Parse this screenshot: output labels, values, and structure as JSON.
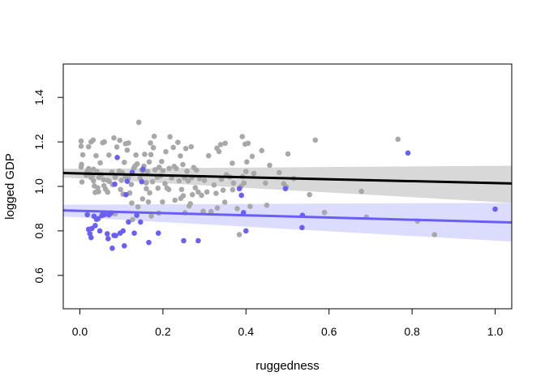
{
  "chart_data": {
    "type": "scatter",
    "title": "",
    "xlabel": "ruggedness",
    "ylabel": "logged GDP",
    "xlim": [
      -0.04,
      1.04
    ],
    "ylim": [
      0.45,
      1.55
    ],
    "xticks": [
      0.0,
      0.2,
      0.4,
      0.6,
      0.8,
      1.0
    ],
    "xtick_labels": [
      "0.0",
      "0.2",
      "0.4",
      "0.6",
      "0.8",
      "1.0"
    ],
    "yticks": [
      0.6,
      0.8,
      1.0,
      1.2,
      1.4
    ],
    "ytick_labels": [
      "0.6",
      "0.8",
      "1.0",
      "1.2",
      "1.4"
    ],
    "grid": false,
    "legend": "none",
    "series": [
      {
        "color": "#A8A8A8",
        "points": [
          [
            0.003,
            1.181
          ],
          [
            0.003,
            1.204
          ],
          [
            0.003,
            1.087
          ],
          [
            0.004,
            1.099
          ],
          [
            0.005,
            1.02
          ],
          [
            0.007,
            1.142
          ],
          [
            0.015,
            1.051
          ],
          [
            0.017,
            1.065
          ],
          [
            0.019,
            1.072
          ],
          [
            0.021,
            1.178
          ],
          [
            0.021,
            1.08
          ],
          [
            0.025,
            1.058
          ],
          [
            0.027,
            1.2
          ],
          [
            0.027,
            1.04
          ],
          [
            0.029,
            1.049
          ],
          [
            0.031,
            1.05
          ],
          [
            0.032,
            1.208
          ],
          [
            0.033,
            1.025
          ],
          [
            0.033,
            1.077
          ],
          [
            0.035,
            1.002
          ],
          [
            0.037,
            0.973
          ],
          [
            0.039,
            1.138
          ],
          [
            0.041,
            1.067
          ],
          [
            0.043,
            0.994
          ],
          [
            0.045,
            0.976
          ],
          [
            0.046,
            1.04
          ],
          [
            0.049,
            1.106
          ],
          [
            0.052,
            1.054
          ],
          [
            0.055,
            1.196
          ],
          [
            0.057,
            1.03
          ],
          [
            0.058,
            1.003
          ],
          [
            0.059,
            1.2
          ],
          [
            0.062,
            0.987
          ],
          [
            0.067,
            1.027
          ],
          [
            0.067,
            0.974
          ],
          [
            0.07,
            1.141
          ],
          [
            0.071,
            1.022
          ],
          [
            0.077,
            1.064
          ],
          [
            0.079,
            1.008
          ],
          [
            0.082,
            1.218
          ],
          [
            0.085,
            1.041
          ],
          [
            0.085,
            0.877
          ],
          [
            0.089,
            1.177
          ],
          [
            0.095,
            1.069
          ],
          [
            0.096,
            1.207
          ],
          [
            0.098,
            0.986
          ],
          [
            0.1,
            1.027
          ],
          [
            0.102,
            1.062
          ],
          [
            0.104,
            0.965
          ],
          [
            0.107,
            1.108
          ],
          [
            0.11,
            1.192
          ],
          [
            0.11,
            1.043
          ],
          [
            0.114,
            1.163
          ],
          [
            0.117,
            1.039
          ],
          [
            0.117,
            1.195
          ],
          [
            0.12,
            0.97
          ],
          [
            0.124,
            1.009
          ],
          [
            0.125,
            0.925
          ],
          [
            0.126,
            1.056
          ],
          [
            0.127,
            0.851
          ],
          [
            0.13,
            1.082
          ],
          [
            0.133,
            1.092
          ],
          [
            0.135,
            1.141
          ],
          [
            0.138,
            1.101
          ],
          [
            0.14,
            0.908
          ],
          [
            0.142,
            1.288
          ],
          [
            0.145,
            1.037
          ],
          [
            0.149,
            1.073
          ],
          [
            0.151,
            1.069
          ],
          [
            0.151,
            0.944
          ],
          [
            0.154,
            1.091
          ],
          [
            0.156,
            1.144
          ],
          [
            0.16,
            1.016
          ],
          [
            0.16,
            0.99
          ],
          [
            0.163,
            1.066
          ],
          [
            0.165,
            0.93
          ],
          [
            0.167,
            1.11
          ],
          [
            0.168,
            0.971
          ],
          [
            0.17,
            1.195
          ],
          [
            0.171,
            1.143
          ],
          [
            0.172,
            0.867
          ],
          [
            0.175,
            1.021
          ],
          [
            0.177,
            1.174
          ],
          [
            0.179,
            1.225
          ],
          [
            0.181,
            1.075
          ],
          [
            0.186,
            1.041
          ],
          [
            0.188,
            0.992
          ],
          [
            0.19,
            0.88
          ],
          [
            0.191,
            1.086
          ],
          [
            0.194,
            1.047
          ],
          [
            0.197,
            1.112
          ],
          [
            0.199,
            0.93
          ],
          [
            0.2,
            1.071
          ],
          [
            0.205,
            1.012
          ],
          [
            0.207,
            1.156
          ],
          [
            0.21,
            0.992
          ],
          [
            0.214,
            0.986
          ],
          [
            0.215,
            1.081
          ],
          [
            0.217,
            1.223
          ],
          [
            0.221,
            1.038
          ],
          [
            0.225,
            1.175
          ],
          [
            0.227,
            1.09
          ],
          [
            0.229,
            0.938
          ],
          [
            0.232,
            1.081
          ],
          [
            0.236,
            1.198
          ],
          [
            0.239,
            1.025
          ],
          [
            0.242,
            1.137
          ],
          [
            0.243,
            0.946
          ],
          [
            0.245,
            0.986
          ],
          [
            0.248,
            1.098
          ],
          [
            0.249,
            0.958
          ],
          [
            0.252,
            1.038
          ],
          [
            0.253,
            0.882
          ],
          [
            0.255,
            1.17
          ],
          [
            0.258,
            1.068
          ],
          [
            0.261,
            1.025
          ],
          [
            0.263,
            0.912
          ],
          [
            0.266,
            0.922
          ],
          [
            0.268,
            1.178
          ],
          [
            0.27,
            1.04
          ],
          [
            0.271,
            0.963
          ],
          [
            0.274,
            1.085
          ],
          [
            0.278,
            0.994
          ],
          [
            0.281,
            1.073
          ],
          [
            0.285,
            0.975
          ],
          [
            0.288,
            1.035
          ],
          [
            0.293,
            0.96
          ],
          [
            0.297,
            0.888
          ],
          [
            0.3,
            1.027
          ],
          [
            0.306,
            0.975
          ],
          [
            0.31,
            1.138
          ],
          [
            0.316,
            0.887
          ],
          [
            0.323,
            1.006
          ],
          [
            0.328,
            0.969
          ],
          [
            0.33,
            1.172
          ],
          [
            0.331,
            0.903
          ],
          [
            0.335,
            1.157
          ],
          [
            0.339,
            1.188
          ],
          [
            0.341,
            1.032
          ],
          [
            0.345,
            0.983
          ],
          [
            0.349,
            0.929
          ],
          [
            0.35,
            1.194
          ],
          [
            0.353,
            1.052
          ],
          [
            0.361,
            1.042
          ],
          [
            0.367,
            1.104
          ],
          [
            0.368,
            0.985
          ],
          [
            0.37,
            1.015
          ],
          [
            0.379,
            0.9
          ],
          [
            0.384,
            0.783
          ],
          [
            0.388,
            1.0
          ],
          [
            0.391,
            1.224
          ],
          [
            0.392,
            1.044
          ],
          [
            0.395,
            1.015
          ],
          [
            0.398,
            1.19
          ],
          [
            0.4,
            1.067
          ],
          [
            0.402,
            1.11
          ],
          [
            0.405,
            1.194
          ],
          [
            0.41,
            0.91
          ],
          [
            0.415,
            1.135
          ],
          [
            0.419,
            1.058
          ],
          [
            0.438,
            1.161
          ],
          [
            0.447,
            1.015
          ],
          [
            0.45,
            0.915
          ],
          [
            0.457,
            1.095
          ],
          [
            0.48,
            1.062
          ],
          [
            0.491,
            1.012
          ],
          [
            0.497,
            0.998
          ],
          [
            0.501,
            1.146
          ],
          [
            0.515,
            1.035
          ],
          [
            0.553,
            0.963
          ],
          [
            0.567,
            1.208
          ],
          [
            0.589,
            0.883
          ],
          [
            0.678,
            0.978
          ],
          [
            0.69,
            0.862
          ],
          [
            0.766,
            1.212
          ],
          [
            0.813,
            0.844
          ],
          [
            0.854,
            0.783
          ]
        ]
      },
      {
        "color": "#6A5FF5",
        "points": [
          [
            0.018,
            0.873
          ],
          [
            0.021,
            0.807
          ],
          [
            0.024,
            0.788
          ],
          [
            0.027,
            0.77
          ],
          [
            0.029,
            0.811
          ],
          [
            0.034,
            0.866
          ],
          [
            0.037,
            0.824
          ],
          [
            0.04,
            0.852
          ],
          [
            0.044,
            0.855
          ],
          [
            0.048,
            0.8
          ],
          [
            0.053,
            0.869
          ],
          [
            0.056,
            0.878
          ],
          [
            0.059,
            0.873
          ],
          [
            0.066,
            0.787
          ],
          [
            0.068,
            0.765
          ],
          [
            0.07,
            0.872
          ],
          [
            0.075,
            0.88
          ],
          [
            0.078,
            0.722
          ],
          [
            0.082,
            0.78
          ],
          [
            0.084,
            1.01
          ],
          [
            0.086,
            0.779
          ],
          [
            0.09,
            1.13
          ],
          [
            0.097,
            0.79
          ],
          [
            0.104,
            0.8
          ],
          [
            0.107,
            0.733
          ],
          [
            0.111,
            0.963
          ],
          [
            0.114,
            1.023
          ],
          [
            0.117,
            0.84
          ],
          [
            0.126,
            1.063
          ],
          [
            0.131,
            0.79
          ],
          [
            0.137,
            0.87
          ],
          [
            0.146,
            0.84
          ],
          [
            0.149,
            1.021
          ],
          [
            0.152,
            1.077
          ],
          [
            0.166,
            0.748
          ],
          [
            0.189,
            0.79
          ],
          [
            0.25,
            0.756
          ],
          [
            0.285,
            0.756
          ],
          [
            0.384,
            0.99
          ],
          [
            0.389,
            0.96
          ],
          [
            0.394,
            0.882
          ],
          [
            0.4,
            0.8
          ],
          [
            0.495,
            0.99
          ],
          [
            0.536,
            0.87
          ],
          [
            0.535,
            0.815
          ],
          [
            0.79,
            1.15
          ],
          [
            1.0,
            0.898
          ]
        ]
      }
    ],
    "fits": [
      {
        "color": "#000000",
        "band_color": "#D8D8D8",
        "x": [
          -0.04,
          1.04
        ],
        "fit": [
          1.06,
          1.013
        ],
        "lower": [
          1.04,
          0.926
        ],
        "upper": [
          1.079,
          1.093
        ]
      },
      {
        "color": "#6A5FF5",
        "band_color": "#DCDCFF",
        "x": [
          -0.04,
          1.04
        ],
        "fit": [
          0.892,
          0.838
        ],
        "lower": [
          0.865,
          0.752
        ],
        "upper": [
          0.918,
          0.926
        ]
      }
    ]
  }
}
